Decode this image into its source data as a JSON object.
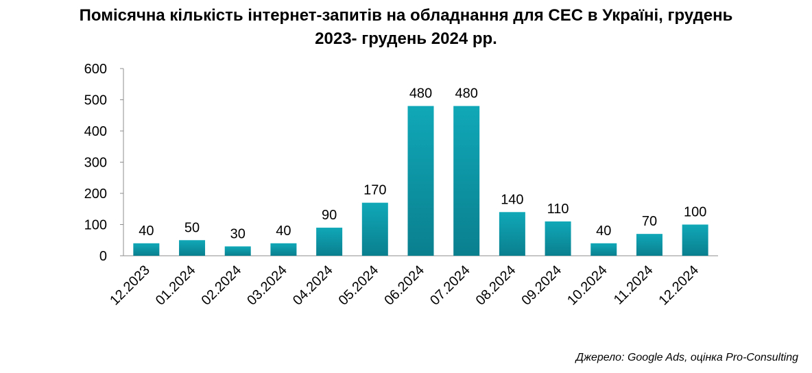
{
  "chart_data": {
    "type": "bar",
    "title_line1": "Помісячна кількість інтернет-запитів на обладнання для СЕС в Україні, грудень",
    "title_line2": "2023- грудень 2024 рр.",
    "categories": [
      "12.2023",
      "01.2024",
      "02.2024",
      "03.2024",
      "04.2024",
      "05.2024",
      "06.2024",
      "07.2024",
      "08.2024",
      "09.2024",
      "10.2024",
      "11.2024",
      "12.2024"
    ],
    "values": [
      40,
      50,
      30,
      40,
      90,
      170,
      480,
      480,
      140,
      110,
      40,
      70,
      100
    ],
    "yticks": [
      "0",
      "100",
      "200",
      "300",
      "400",
      "500",
      "600"
    ],
    "ylim": [
      0,
      600
    ],
    "grid": false,
    "legend": "none",
    "bar_color_top": "#10a8b8",
    "bar_color_bottom": "#0a7f8e"
  },
  "source": "Джерело: Google Ads, оцінка Pro-Consulting"
}
